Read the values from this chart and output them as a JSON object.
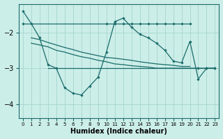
{
  "xlabel": "Humidex (Indice chaleur)",
  "bg_color": "#cceee8",
  "grid_color": "#aad8d2",
  "line_color": "#1a6b6b",
  "xlim": [
    -0.5,
    23.5
  ],
  "ylim": [
    -4.4,
    -1.2
  ],
  "xticks": [
    0,
    1,
    2,
    3,
    4,
    5,
    6,
    7,
    8,
    9,
    10,
    11,
    12,
    13,
    14,
    15,
    16,
    17,
    18,
    19,
    20,
    21,
    22,
    23
  ],
  "yticks": [
    -4,
    -3,
    -2
  ],
  "curve_x": [
    0,
    1,
    2,
    3,
    4,
    5,
    6,
    7,
    8,
    9,
    10,
    11,
    12,
    13,
    14,
    15,
    16,
    17,
    18,
    19,
    20,
    21,
    22,
    23
  ],
  "curve_y": [
    -1.4,
    -1.75,
    -2.15,
    -2.9,
    -3.0,
    -3.55,
    -3.7,
    -3.75,
    -3.5,
    -3.25,
    -2.55,
    -1.7,
    -1.6,
    -1.85,
    -2.05,
    -2.15,
    -2.3,
    -2.5,
    -2.8,
    -2.85,
    -2.25,
    -3.3,
    -3.0,
    -3.0
  ],
  "flat1_x": [
    0,
    1,
    2,
    3,
    4,
    5,
    6,
    7,
    8,
    9,
    10,
    11,
    12,
    13,
    14,
    15,
    16,
    17,
    18,
    19,
    20
  ],
  "flat1_y": [
    -1.75,
    -1.75,
    -1.75,
    -1.75,
    -1.75,
    -1.75,
    -1.75,
    -1.75,
    -1.75,
    -1.75,
    -1.75,
    -1.75,
    -1.75,
    -1.75,
    -1.75,
    -1.75,
    -1.75,
    -1.75,
    -1.75,
    -1.75,
    -1.75
  ],
  "slope1_x": [
    1,
    2,
    3,
    4,
    5,
    6,
    7,
    8,
    9,
    10,
    11,
    12,
    13,
    14,
    15,
    16,
    17,
    18,
    19,
    20
  ],
  "slope1_y": [
    -2.15,
    -2.2,
    -2.28,
    -2.35,
    -2.42,
    -2.48,
    -2.55,
    -2.6,
    -2.65,
    -2.7,
    -2.72,
    -2.75,
    -2.78,
    -2.82,
    -2.85,
    -2.88,
    -2.9,
    -2.92,
    -2.95,
    -2.95
  ],
  "slope2_x": [
    1,
    2,
    3,
    4,
    5,
    6,
    7,
    8,
    9,
    10,
    11,
    12,
    13,
    14,
    15,
    16,
    17,
    18,
    19,
    20,
    21,
    22,
    23
  ],
  "slope2_y": [
    -2.3,
    -2.35,
    -2.4,
    -2.5,
    -2.55,
    -2.62,
    -2.68,
    -2.72,
    -2.78,
    -2.82,
    -2.88,
    -2.9,
    -2.93,
    -2.95,
    -2.97,
    -3.0,
    -3.0,
    -3.0,
    -3.0,
    -3.0,
    -3.0,
    -3.0,
    -3.0
  ],
  "flat2_x": [
    3,
    4,
    5,
    6,
    7,
    8,
    9,
    10,
    11,
    12,
    13,
    14,
    15,
    16,
    17,
    18,
    19,
    20,
    21,
    22,
    23
  ],
  "flat2_y": [
    -3.0,
    -3.0,
    -3.0,
    -3.0,
    -3.0,
    -3.0,
    -3.0,
    -3.0,
    -3.0,
    -3.0,
    -3.0,
    -3.0,
    -3.0,
    -3.0,
    -3.0,
    -3.0,
    -3.0,
    -3.0,
    -3.0,
    -3.0,
    -3.0
  ],
  "curve_markers": [
    0,
    1,
    2,
    3,
    4,
    5,
    6,
    7,
    8,
    9,
    10,
    11,
    12,
    13,
    14,
    15,
    16,
    17,
    18,
    19,
    20,
    21,
    22,
    23
  ],
  "flat1_markers": [
    0,
    10,
    11,
    12,
    13,
    14,
    15,
    16,
    17,
    18,
    19,
    20
  ]
}
